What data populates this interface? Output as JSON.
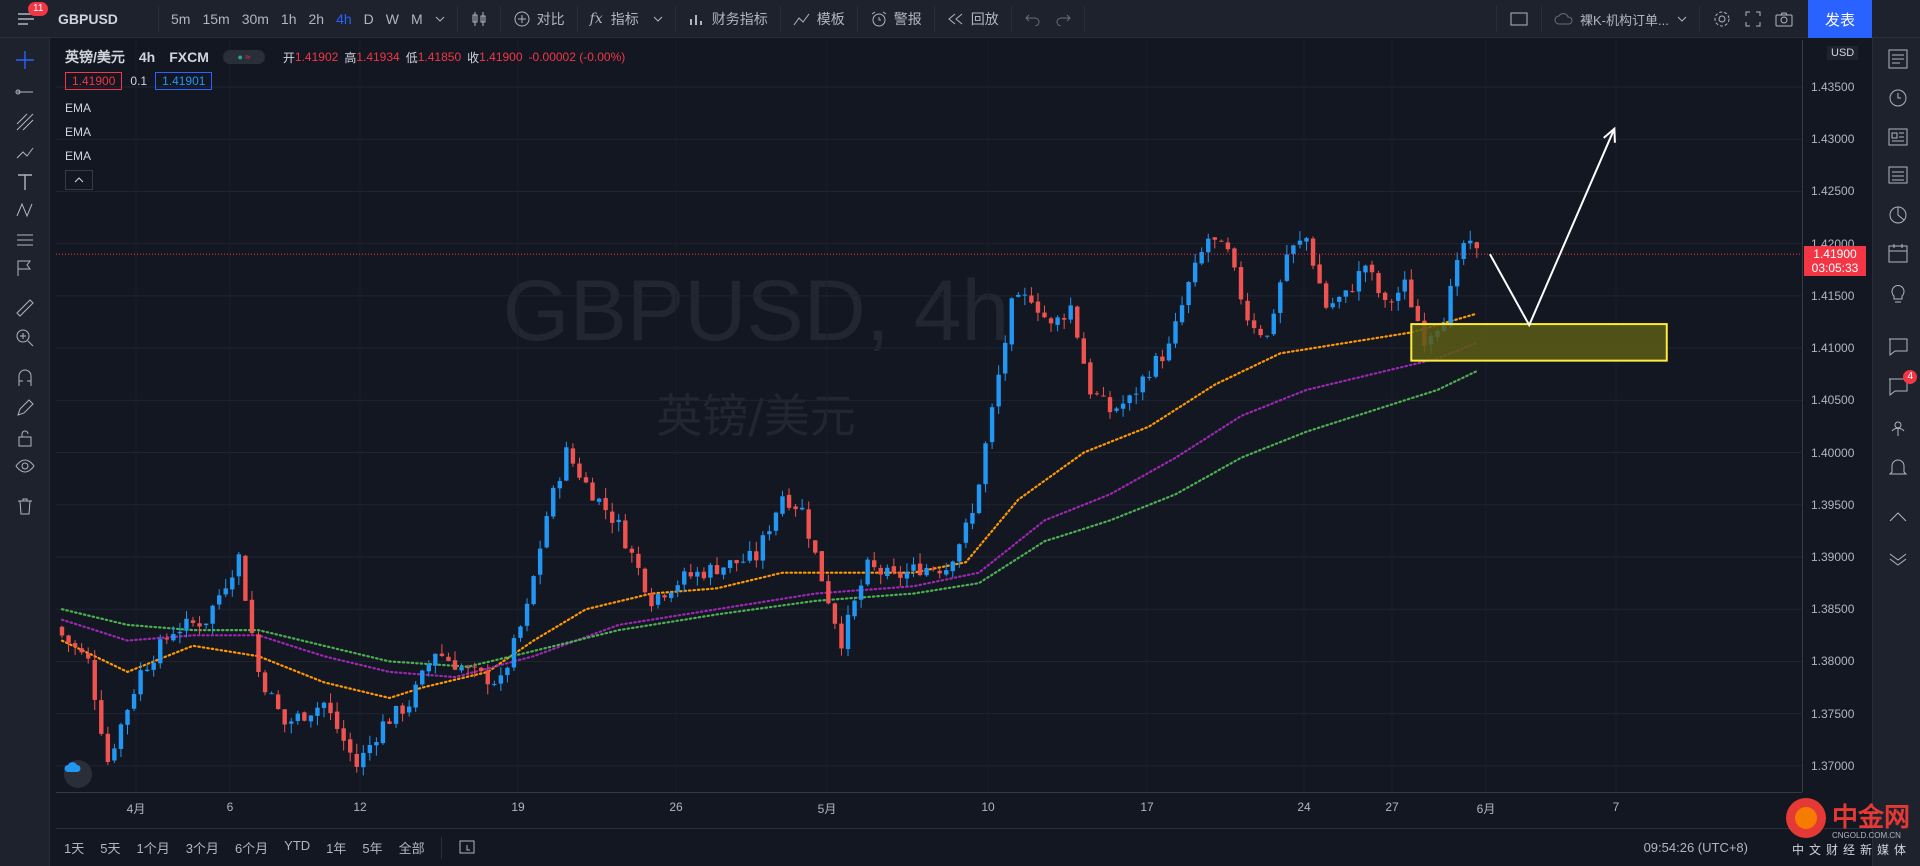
{
  "header": {
    "menu_badge": "11",
    "symbol": "GBPUSD",
    "intervals": [
      "5m",
      "15m",
      "30m",
      "1h",
      "2h",
      "4h",
      "D",
      "W",
      "M"
    ],
    "active_interval": "4h",
    "compare": "对比",
    "indicators": "指标",
    "financials": "财务指标",
    "templates": "模板",
    "alerts": "警报",
    "replay": "回放",
    "layout_name": "裸K-机构订单...",
    "publish": "发表"
  },
  "legend": {
    "title": "英镑/美元",
    "interval": "4h",
    "source": "FXCM",
    "open_label": "开",
    "open": "1.41902",
    "high_label": "高",
    "high": "1.41934",
    "low_label": "低",
    "low": "1.41850",
    "close_label": "收",
    "close": "1.41900",
    "change": "-0.00002 (-0.00%)",
    "bid": "1.41900",
    "spread": "0.1",
    "ask": "1.41901",
    "indicators": [
      "EMA",
      "EMA",
      "EMA"
    ]
  },
  "watermark": {
    "symbol": "GBPUSD, 4h",
    "name": "英镑/美元"
  },
  "price_axis": {
    "currency": "USD",
    "current_price": "1.41900",
    "countdown": "03:05:33"
  },
  "bottom": {
    "ranges": [
      "1天",
      "5天",
      "1个月",
      "3个月",
      "6个月",
      "YTD",
      "1年",
      "5年",
      "全部"
    ],
    "clock": "09:54:26 (UTC+8)"
  },
  "logo": {
    "name": "中金网",
    "url": "CNGOLD.COM.CN",
    "slogan": "中文财经新媒体"
  },
  "right_badge": "4",
  "colors": {
    "background": "#131722",
    "up": "#2196f3",
    "down": "#ef5350",
    "ema_fast": "#ff9800",
    "ema_mid": "#9c27b0",
    "ema_slow": "#4caf50",
    "zone_fill": "#5c5c14",
    "zone_border": "#ffeb3b"
  },
  "chart_data": {
    "type": "candlestick",
    "symbol": "GBPUSD",
    "interval": "4h",
    "ylim": [
      1.3675,
      1.4395
    ],
    "y_ticks": [
      "1.43500",
      "1.43000",
      "1.42500",
      "1.42000",
      "1.41500",
      "1.41000",
      "1.40500",
      "1.40000",
      "1.39500",
      "1.39000",
      "1.38500",
      "1.38000",
      "1.37500",
      "1.37000"
    ],
    "x_ticks": [
      "4月",
      "6",
      "12",
      "19",
      "26",
      "5月",
      "10",
      "17",
      "24",
      "27",
      "6月",
      "7"
    ],
    "close_path": [
      {
        "bar": 0,
        "close": 1.3825
      },
      {
        "bar": 4,
        "close": 1.38
      },
      {
        "bar": 7,
        "close": 1.3705
      },
      {
        "bar": 12,
        "close": 1.379
      },
      {
        "bar": 17,
        "close": 1.383
      },
      {
        "bar": 22,
        "close": 1.384
      },
      {
        "bar": 27,
        "close": 1.39
      },
      {
        "bar": 30,
        "close": 1.379
      },
      {
        "bar": 34,
        "close": 1.374
      },
      {
        "bar": 40,
        "close": 1.376
      },
      {
        "bar": 45,
        "close": 1.37
      },
      {
        "bar": 49,
        "close": 1.374
      },
      {
        "bar": 53,
        "close": 1.376
      },
      {
        "bar": 57,
        "close": 1.381
      },
      {
        "bar": 62,
        "close": 1.379
      },
      {
        "bar": 67,
        "close": 1.378
      },
      {
        "bar": 71,
        "close": 1.385
      },
      {
        "bar": 74,
        "close": 1.394
      },
      {
        "bar": 77,
        "close": 1.4
      },
      {
        "bar": 80,
        "close": 1.397
      },
      {
        "bar": 85,
        "close": 1.393
      },
      {
        "bar": 90,
        "close": 1.386
      },
      {
        "bar": 95,
        "close": 1.388
      },
      {
        "bar": 100,
        "close": 1.389
      },
      {
        "bar": 106,
        "close": 1.39
      },
      {
        "bar": 110,
        "close": 1.396
      },
      {
        "bar": 113,
        "close": 1.3945
      },
      {
        "bar": 116,
        "close": 1.388
      },
      {
        "bar": 119,
        "close": 1.382
      },
      {
        "bar": 123,
        "close": 1.389
      },
      {
        "bar": 127,
        "close": 1.388
      },
      {
        "bar": 131,
        "close": 1.389
      },
      {
        "bar": 135,
        "close": 1.389
      },
      {
        "bar": 139,
        "close": 1.394
      },
      {
        "bar": 142,
        "close": 1.404
      },
      {
        "bar": 145,
        "close": 1.414
      },
      {
        "bar": 148,
        "close": 1.415
      },
      {
        "bar": 151,
        "close": 1.412
      },
      {
        "bar": 154,
        "close": 1.414
      },
      {
        "bar": 157,
        "close": 1.406
      },
      {
        "bar": 160,
        "close": 1.404
      },
      {
        "bar": 163,
        "close": 1.405
      },
      {
        "bar": 166,
        "close": 1.408
      },
      {
        "bar": 169,
        "close": 1.41
      },
      {
        "bar": 172,
        "close": 1.416
      },
      {
        "bar": 175,
        "close": 1.4205
      },
      {
        "bar": 178,
        "close": 1.419
      },
      {
        "bar": 181,
        "close": 1.413
      },
      {
        "bar": 184,
        "close": 1.411
      },
      {
        "bar": 187,
        "close": 1.419
      },
      {
        "bar": 190,
        "close": 1.4205
      },
      {
        "bar": 193,
        "close": 1.414
      },
      {
        "bar": 196,
        "close": 1.415
      },
      {
        "bar": 199,
        "close": 1.418
      },
      {
        "bar": 202,
        "close": 1.414
      },
      {
        "bar": 205,
        "close": 1.416
      },
      {
        "bar": 208,
        "close": 1.411
      },
      {
        "bar": 211,
        "close": 1.413
      },
      {
        "bar": 214,
        "close": 1.42
      },
      {
        "bar": 216,
        "close": 1.419
      }
    ],
    "ema_fast": [
      {
        "bar": 0,
        "value": 1.382
      },
      {
        "bar": 10,
        "value": 1.379
      },
      {
        "bar": 20,
        "value": 1.3815
      },
      {
        "bar": 30,
        "value": 1.3805
      },
      {
        "bar": 40,
        "value": 1.378
      },
      {
        "bar": 50,
        "value": 1.3765
      },
      {
        "bar": 55,
        "value": 1.3775
      },
      {
        "bar": 65,
        "value": 1.379
      },
      {
        "bar": 72,
        "value": 1.382
      },
      {
        "bar": 80,
        "value": 1.385
      },
      {
        "bar": 90,
        "value": 1.3865
      },
      {
        "bar": 100,
        "value": 1.387
      },
      {
        "bar": 110,
        "value": 1.3885
      },
      {
        "bar": 120,
        "value": 1.3885
      },
      {
        "bar": 130,
        "value": 1.3885
      },
      {
        "bar": 138,
        "value": 1.3895
      },
      {
        "bar": 146,
        "value": 1.3955
      },
      {
        "bar": 156,
        "value": 1.4
      },
      {
        "bar": 166,
        "value": 1.4025
      },
      {
        "bar": 176,
        "value": 1.4065
      },
      {
        "bar": 186,
        "value": 1.4095
      },
      {
        "bar": 196,
        "value": 1.4105
      },
      {
        "bar": 206,
        "value": 1.4115
      },
      {
        "bar": 216,
        "value": 1.4133
      }
    ],
    "ema_mid": [
      {
        "bar": 0,
        "value": 1.384
      },
      {
        "bar": 10,
        "value": 1.382
      },
      {
        "bar": 20,
        "value": 1.3825
      },
      {
        "bar": 30,
        "value": 1.3825
      },
      {
        "bar": 40,
        "value": 1.3805
      },
      {
        "bar": 50,
        "value": 1.379
      },
      {
        "bar": 60,
        "value": 1.3785
      },
      {
        "bar": 72,
        "value": 1.3805
      },
      {
        "bar": 85,
        "value": 1.3835
      },
      {
        "bar": 100,
        "value": 1.385
      },
      {
        "bar": 115,
        "value": 1.3865
      },
      {
        "bar": 130,
        "value": 1.3872
      },
      {
        "bar": 140,
        "value": 1.3885
      },
      {
        "bar": 150,
        "value": 1.3935
      },
      {
        "bar": 160,
        "value": 1.396
      },
      {
        "bar": 170,
        "value": 1.3995
      },
      {
        "bar": 180,
        "value": 1.4035
      },
      {
        "bar": 190,
        "value": 1.406
      },
      {
        "bar": 200,
        "value": 1.4075
      },
      {
        "bar": 210,
        "value": 1.409
      },
      {
        "bar": 216,
        "value": 1.4105
      }
    ],
    "ema_slow": [
      {
        "bar": 0,
        "value": 1.385
      },
      {
        "bar": 10,
        "value": 1.3835
      },
      {
        "bar": 20,
        "value": 1.383
      },
      {
        "bar": 30,
        "value": 1.383
      },
      {
        "bar": 40,
        "value": 1.3815
      },
      {
        "bar": 50,
        "value": 1.38
      },
      {
        "bar": 62,
        "value": 1.3795
      },
      {
        "bar": 72,
        "value": 1.381
      },
      {
        "bar": 85,
        "value": 1.383
      },
      {
        "bar": 100,
        "value": 1.3845
      },
      {
        "bar": 115,
        "value": 1.3858
      },
      {
        "bar": 130,
        "value": 1.3865
      },
      {
        "bar": 140,
        "value": 1.3875
      },
      {
        "bar": 150,
        "value": 1.3915
      },
      {
        "bar": 160,
        "value": 1.3935
      },
      {
        "bar": 170,
        "value": 1.396
      },
      {
        "bar": 180,
        "value": 1.3995
      },
      {
        "bar": 190,
        "value": 1.402
      },
      {
        "bar": 200,
        "value": 1.404
      },
      {
        "bar": 210,
        "value": 1.406
      },
      {
        "bar": 216,
        "value": 1.4078
      }
    ],
    "annotations": {
      "zone": {
        "bar_start": 206,
        "bar_end": 245,
        "price_top": 1.4123,
        "price_bottom": 1.4088
      },
      "arrow_path": [
        {
          "bar": 218,
          "price": 1.419
        },
        {
          "bar": 224,
          "price": 1.4122
        },
        {
          "bar": 237,
          "price": 1.431
        }
      ]
    }
  }
}
